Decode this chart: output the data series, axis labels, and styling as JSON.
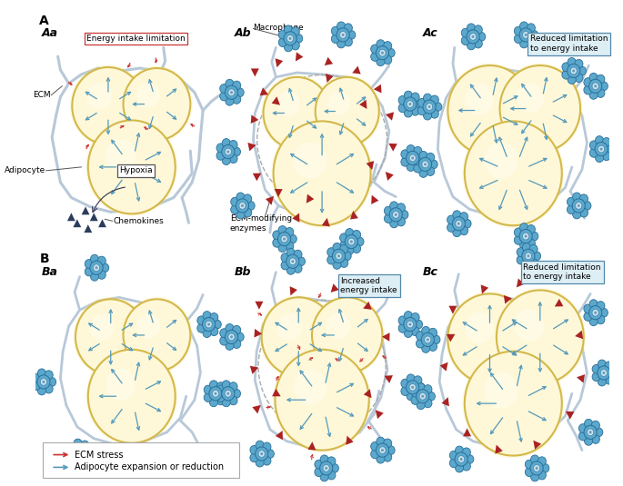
{
  "bg_color": "#ffffff",
  "adipocyte_fill": "#fef8d8",
  "adipocyte_edge": "#d4b84a",
  "adipocyte_fill2": "#fef3c0",
  "ecm_color": "#b8c8d8",
  "ecm_stress_color": "#cc3333",
  "expansion_arrow_color": "#5599bb",
  "macrophage_body": "#5ba8cc",
  "macrophage_edge": "#2a6e99",
  "chemokine_color": "#2a3d5c",
  "enzyme_color": "#aa2222",
  "label_A": "A",
  "label_B": "B",
  "label_Aa": "Aa",
  "label_Ab": "Ab",
  "label_Ac": "Ac",
  "label_Ba": "Ba",
  "label_Bb": "Bb",
  "label_Bc": "Bc",
  "text_energy_limit": "Energy intake limitation",
  "text_hypoxia": "Hypoxia",
  "text_ecm": "ECM",
  "text_adipocyte": "Adipocyte",
  "text_chemokines": "Chemokines",
  "text_macrophage": "Macrophage",
  "text_ecm_enzymes": "ECM-modifying\nenzymes",
  "text_reduced_Ac": "Reduced limitation\nto energy intake",
  "text_increased_Bb": "Increased\nenergy intake",
  "text_reduced_Bc": "Reduced limitation\nto energy intake",
  "legend_ecm_stress": "ECM stress",
  "legend_expansion": "Adipocyte expansion or reduction"
}
